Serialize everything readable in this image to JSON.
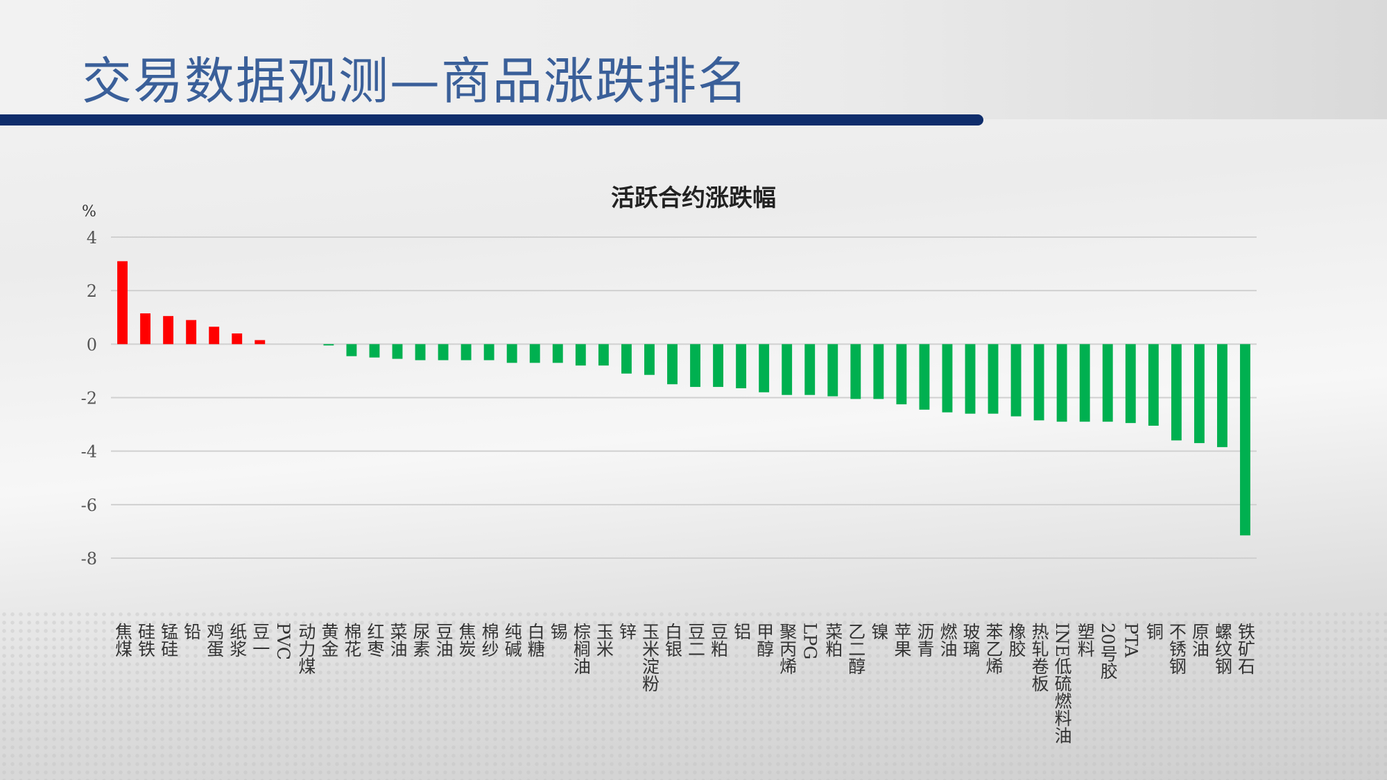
{
  "header": {
    "title": "交易数据观测—商品涨跌排名"
  },
  "chart_data": {
    "type": "bar",
    "title": "活跃合约涨跌幅",
    "ylabel": "%",
    "xlabel": "",
    "ylim": [
      -8,
      4
    ],
    "yticks": [
      4,
      2,
      0,
      -2,
      -4,
      -6,
      -8
    ],
    "grid": true,
    "colors": {
      "up": "#ff0000",
      "down": "#00b050"
    },
    "categories": [
      "焦煤",
      "硅铁",
      "锰硅",
      "铅",
      "鸡蛋",
      "纸浆",
      "豆一",
      "PVC",
      "动力煤",
      "黄金",
      "棉花",
      "红枣",
      "菜油",
      "尿素",
      "豆油",
      "焦炭",
      "棉纱",
      "纯碱",
      "白糖",
      "锡",
      "棕榈油",
      "玉米",
      "锌",
      "玉米淀粉",
      "白银",
      "豆二",
      "豆粕",
      "铝",
      "甲醇",
      "聚丙烯",
      "LPG",
      "菜粕",
      "乙二醇",
      "镍",
      "苹果",
      "沥青",
      "燃油",
      "玻璃",
      "苯乙烯",
      "橡胶",
      "热轧卷板",
      "INE低硫燃料油",
      "塑料",
      "20号胶",
      "PTA",
      "铜",
      "不锈钢",
      "原油",
      "螺纹钢",
      "铁矿石"
    ],
    "values": [
      3.1,
      1.15,
      1.05,
      0.9,
      0.65,
      0.4,
      0.15,
      0,
      0,
      -0.05,
      -0.45,
      -0.5,
      -0.55,
      -0.6,
      -0.6,
      -0.6,
      -0.6,
      -0.7,
      -0.7,
      -0.7,
      -0.8,
      -0.8,
      -1.1,
      -1.15,
      -1.5,
      -1.6,
      -1.6,
      -1.65,
      -1.8,
      -1.9,
      -1.9,
      -1.95,
      -2.05,
      -2.05,
      -2.25,
      -2.45,
      -2.55,
      -2.6,
      -2.6,
      -2.7,
      -2.85,
      -2.9,
      -2.9,
      -2.9,
      -2.95,
      -3.05,
      -3.6,
      -3.7,
      -3.85,
      -7.15
    ]
  }
}
